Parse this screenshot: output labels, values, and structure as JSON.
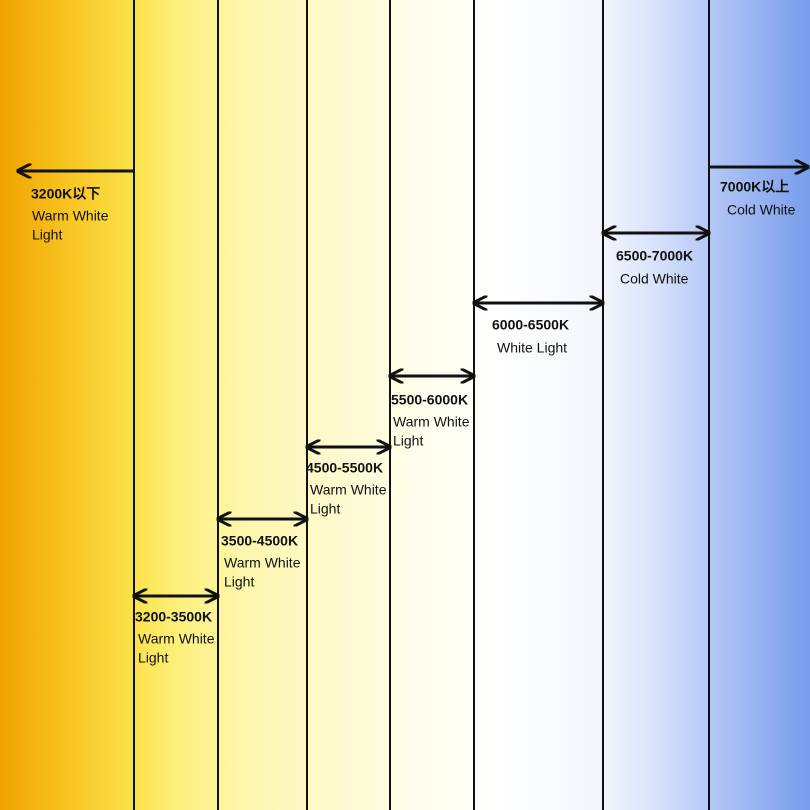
{
  "segments": [
    {
      "range": "3200K以下",
      "description": [
        "Warm White",
        "Light"
      ]
    },
    {
      "range": "3200-3500K",
      "description": [
        "Warm White",
        "Light"
      ]
    },
    {
      "range": "3500-4500K",
      "description": [
        "Warm White",
        "Light"
      ]
    },
    {
      "range": "4500-5500K",
      "description": [
        "Warm White",
        "Light"
      ]
    },
    {
      "range": "5500-6000K",
      "description": [
        "Warm White",
        "Light"
      ]
    },
    {
      "range": "6000-6500K",
      "description": [
        "White Light"
      ]
    },
    {
      "range": "6500-7000K",
      "description": [
        "Cold White"
      ]
    },
    {
      "range": "7000K以上",
      "description": [
        "Cold White"
      ]
    }
  ]
}
